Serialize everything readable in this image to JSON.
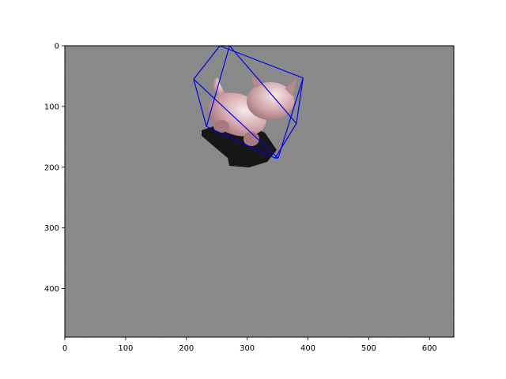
{
  "chart_data": {
    "type": "image",
    "title": "",
    "xlabel": "",
    "ylabel": "",
    "xlim": [
      0,
      640
    ],
    "ylim": [
      480,
      0
    ],
    "x_ticks": [
      0,
      100,
      200,
      300,
      400,
      500,
      600
    ],
    "y_ticks": [
      0,
      100,
      200,
      300,
      400
    ],
    "image_background": "#868686",
    "overlay": {
      "type": "wireframe-box",
      "color": "#0000ee",
      "vertices": [
        [
          255,
          0
        ],
        [
          392,
          53
        ],
        [
          351,
          185
        ],
        [
          212,
          55
        ],
        [
          271,
          0
        ],
        [
          381,
          128
        ],
        [
          346,
          185
        ],
        [
          233,
          133
        ]
      ],
      "edges": [
        [
          0,
          1
        ],
        [
          1,
          2
        ],
        [
          2,
          3
        ],
        [
          3,
          0
        ],
        [
          4,
          5
        ],
        [
          5,
          6
        ],
        [
          6,
          7
        ],
        [
          7,
          4
        ],
        [
          0,
          4
        ],
        [
          1,
          5
        ],
        [
          2,
          6
        ],
        [
          3,
          7
        ]
      ]
    },
    "object": {
      "name": "pink cat figurine",
      "body_color": "#d8aeb3",
      "shadow_color": "#1a1a1a"
    }
  }
}
